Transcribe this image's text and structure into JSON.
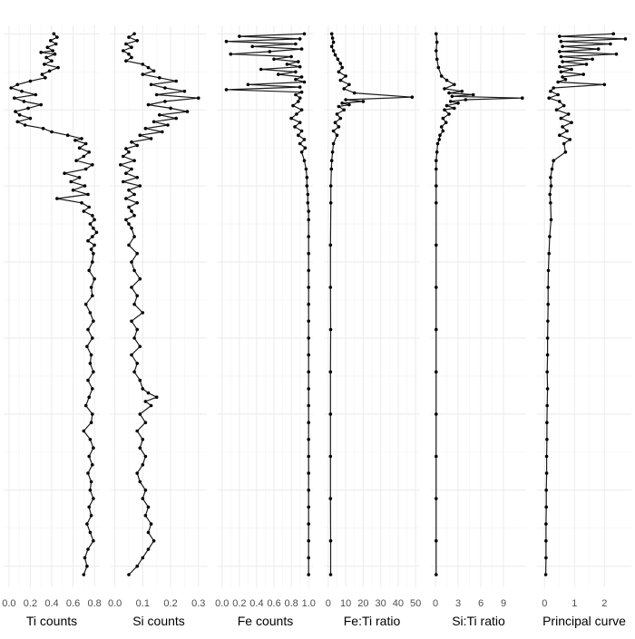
{
  "chart_data": [
    {
      "type": "line",
      "xlabel": "Ti counts",
      "xlim": [
        -0.05,
        0.85
      ],
      "xticks": [
        0.0,
        0.2,
        0.4,
        0.6,
        0.8
      ],
      "xtick_labels": [
        "0.0",
        "0.2",
        "0.4",
        "0.6",
        "0.8"
      ],
      "grid": true,
      "series": [
        {
          "depth": [
            0,
            4,
            8,
            12,
            16,
            20,
            22,
            24,
            28,
            32,
            36,
            40,
            44,
            48,
            52,
            56,
            60,
            64,
            68,
            72,
            76,
            80,
            84,
            88,
            92,
            96,
            100,
            104,
            108,
            112,
            116,
            120,
            124,
            126,
            130,
            135,
            140,
            145,
            150,
            155,
            160,
            165,
            170,
            175,
            180,
            185,
            190,
            195,
            200,
            205,
            210,
            215,
            220,
            225,
            230,
            235,
            240,
            245,
            250,
            255,
            260,
            270,
            280,
            290,
            300,
            310,
            320,
            330,
            340,
            350,
            360,
            370,
            380,
            390,
            400,
            410,
            420,
            430,
            440,
            450,
            460,
            470,
            480,
            490,
            500,
            510,
            520,
            530,
            540,
            550,
            560,
            570,
            580,
            590,
            600,
            610,
            620,
            630,
            640
          ],
          "values": [
            0.42,
            0.45,
            0.39,
            0.44,
            0.36,
            0.41,
            0.3,
            0.43,
            0.35,
            0.4,
            0.33,
            0.46,
            0.38,
            0.31,
            0.34,
            0.2,
            0.08,
            0.02,
            0.12,
            0.25,
            0.05,
            0.14,
            0.3,
            0.18,
            0.06,
            0.1,
            0.2,
            0.08,
            0.15,
            0.32,
            0.4,
            0.55,
            0.68,
            0.62,
            0.72,
            0.66,
            0.75,
            0.7,
            0.63,
            0.78,
            0.72,
            0.52,
            0.66,
            0.58,
            0.71,
            0.6,
            0.74,
            0.45,
            0.68,
            0.75,
            0.7,
            0.78,
            0.8,
            0.76,
            0.79,
            0.82,
            0.78,
            0.74,
            0.8,
            0.77,
            0.79,
            0.78,
            0.75,
            0.8,
            0.77,
            0.78,
            0.72,
            0.76,
            0.79,
            0.74,
            0.78,
            0.73,
            0.77,
            0.76,
            0.79,
            0.74,
            0.78,
            0.75,
            0.72,
            0.78,
            0.77,
            0.7,
            0.76,
            0.79,
            0.75,
            0.78,
            0.74,
            0.77,
            0.76,
            0.79,
            0.75,
            0.77,
            0.73,
            0.76,
            0.79,
            0.74,
            0.71,
            0.73,
            0.7
          ]
        }
      ]
    },
    {
      "type": "line",
      "xlabel": "Si counts",
      "xlim": [
        -0.015,
        0.33
      ],
      "xticks": [
        0.0,
        0.1,
        0.2,
        0.3
      ],
      "xtick_labels": [
        "0.0",
        "0.1",
        "0.2",
        "0.3"
      ],
      "grid": true,
      "series": [
        {
          "depth": [
            0,
            4,
            8,
            12,
            16,
            20,
            24,
            28,
            32,
            36,
            40,
            44,
            48,
            52,
            56,
            60,
            64,
            68,
            72,
            76,
            80,
            84,
            88,
            92,
            96,
            100,
            104,
            108,
            112,
            116,
            120,
            124,
            128,
            132,
            136,
            140,
            145,
            150,
            155,
            160,
            165,
            170,
            175,
            180,
            185,
            190,
            195,
            200,
            205,
            210,
            215,
            220,
            225,
            230,
            240,
            250,
            260,
            270,
            280,
            290,
            300,
            310,
            320,
            330,
            340,
            350,
            360,
            370,
            380,
            390,
            400,
            410,
            420,
            425,
            430,
            435,
            440,
            450,
            460,
            470,
            480,
            490,
            500,
            510,
            520,
            530,
            540,
            550,
            560,
            570,
            580,
            590,
            600,
            610,
            620,
            630,
            640
          ],
          "values": [
            0.07,
            0.05,
            0.08,
            0.04,
            0.06,
            0.03,
            0.05,
            0.06,
            0.04,
            0.1,
            0.12,
            0.14,
            0.1,
            0.16,
            0.22,
            0.13,
            0.18,
            0.25,
            0.15,
            0.3,
            0.18,
            0.12,
            0.2,
            0.26,
            0.16,
            0.22,
            0.14,
            0.19,
            0.11,
            0.17,
            0.09,
            0.13,
            0.06,
            0.08,
            0.04,
            0.05,
            0.03,
            0.07,
            0.02,
            0.06,
            0.04,
            0.08,
            0.03,
            0.09,
            0.05,
            0.07,
            0.04,
            0.08,
            0.05,
            0.06,
            0.07,
            0.04,
            0.05,
            0.06,
            0.07,
            0.05,
            0.08,
            0.06,
            0.07,
            0.09,
            0.06,
            0.08,
            0.07,
            0.1,
            0.06,
            0.08,
            0.07,
            0.09,
            0.06,
            0.08,
            0.07,
            0.09,
            0.1,
            0.12,
            0.15,
            0.11,
            0.13,
            0.09,
            0.11,
            0.08,
            0.1,
            0.09,
            0.11,
            0.1,
            0.08,
            0.09,
            0.11,
            0.1,
            0.12,
            0.11,
            0.13,
            0.12,
            0.14,
            0.12,
            0.1,
            0.08,
            0.05
          ]
        }
      ]
    },
    {
      "type": "line",
      "xlabel": "Fe counts",
      "xlim": [
        -0.05,
        1.05
      ],
      "xticks": [
        0.0,
        0.2,
        0.4,
        0.6,
        0.8,
        1.0
      ],
      "xtick_labels": [
        "0.0",
        "0.2",
        "0.4",
        "0.6",
        "0.8",
        "1.0"
      ],
      "grid": true,
      "series": [
        {
          "depth": [
            0,
            3,
            6,
            9,
            12,
            15,
            18,
            21,
            24,
            27,
            30,
            33,
            36,
            39,
            42,
            45,
            48,
            51,
            54,
            57,
            60,
            63,
            66,
            69,
            72,
            76,
            80,
            85,
            90,
            95,
            100,
            105,
            110,
            115,
            120,
            125,
            130,
            135,
            140,
            150,
            160,
            170,
            180,
            190,
            200,
            210,
            220,
            240,
            260,
            280,
            300,
            320,
            340,
            360,
            380,
            400,
            420,
            440,
            460,
            480,
            500,
            520,
            540,
            560,
            580,
            600,
            620,
            640
          ],
          "values": [
            0.95,
            0.2,
            0.9,
            0.05,
            0.85,
            0.35,
            0.92,
            0.55,
            0.1,
            0.8,
            0.6,
            0.88,
            0.75,
            0.9,
            0.45,
            0.85,
            0.65,
            0.92,
            0.85,
            0.95,
            0.3,
            0.9,
            0.05,
            0.92,
            0.85,
            0.9,
            0.88,
            0.82,
            0.92,
            0.86,
            0.8,
            0.9,
            0.84,
            0.92,
            0.88,
            0.95,
            0.9,
            0.96,
            0.92,
            0.95,
            0.97,
            0.98,
            0.98,
            0.99,
            0.99,
            1.0,
            1.0,
            1.0,
            1.0,
            1.0,
            1.0,
            1.0,
            1.0,
            1.0,
            1.0,
            1.0,
            1.0,
            1.0,
            1.0,
            1.0,
            1.0,
            1.0,
            1.0,
            1.0,
            1.0,
            1.0,
            1.0,
            1.0
          ]
        }
      ]
    },
    {
      "type": "line",
      "xlabel": "Fe:Ti ratio",
      "xlim": [
        -2.5,
        52.5
      ],
      "xticks": [
        0,
        10,
        20,
        30,
        40,
        50
      ],
      "xtick_labels": [
        "0",
        "10",
        "20",
        "30",
        "40",
        "50"
      ],
      "grid": true,
      "series": [
        {
          "depth": [
            0,
            5,
            10,
            15,
            20,
            25,
            30,
            35,
            40,
            45,
            50,
            55,
            60,
            65,
            70,
            75,
            78,
            80,
            82,
            84,
            86,
            90,
            95,
            100,
            105,
            110,
            115,
            120,
            130,
            140,
            150,
            160,
            180,
            200,
            250,
            300,
            350,
            400,
            450,
            500,
            550,
            600,
            640
          ],
          "values": [
            2.0,
            2.5,
            3.0,
            2.0,
            3.0,
            4.0,
            5.5,
            7.0,
            8.0,
            6.0,
            10.0,
            7.0,
            12.0,
            9.0,
            15.0,
            48.0,
            10.0,
            20.0,
            8.0,
            12.0,
            6.0,
            9.0,
            5.0,
            7.0,
            4.0,
            6.0,
            3.0,
            5.0,
            3.0,
            2.5,
            2.0,
            1.8,
            1.5,
            1.5,
            1.3,
            1.3,
            1.4,
            1.3,
            1.3,
            1.3,
            1.3,
            1.4,
            1.4
          ]
        }
      ]
    },
    {
      "type": "line",
      "xlabel": "Si:Ti ratio",
      "xlim": [
        -0.6,
        12.0
      ],
      "xticks": [
        0,
        3,
        6,
        9
      ],
      "xtick_labels": [
        "0",
        "3",
        "6",
        "9"
      ],
      "grid": true,
      "series": [
        {
          "depth": [
            0,
            10,
            20,
            30,
            40,
            50,
            55,
            60,
            65,
            68,
            70,
            72,
            74,
            76,
            78,
            80,
            82,
            85,
            88,
            90,
            95,
            100,
            105,
            110,
            115,
            120,
            125,
            130,
            140,
            150,
            160,
            180,
            200,
            250,
            300,
            350,
            400,
            450,
            500,
            550,
            600,
            640
          ],
          "values": [
            0.1,
            0.2,
            0.1,
            0.2,
            0.4,
            0.8,
            1.5,
            2.5,
            1.2,
            3.5,
            1.8,
            5.0,
            2.2,
            11.5,
            4.0,
            2.0,
            3.0,
            1.5,
            2.5,
            1.2,
            1.8,
            1.0,
            1.4,
            0.8,
            1.0,
            0.6,
            0.5,
            0.3,
            0.2,
            0.1,
            0.1,
            0.1,
            0.1,
            0.1,
            0.1,
            0.1,
            0.1,
            0.1,
            0.1,
            0.1,
            0.1,
            0.1
          ]
        }
      ]
    },
    {
      "type": "line",
      "xlabel": "Principal curve",
      "xlim": [
        -0.25,
        2.9
      ],
      "xticks": [
        0,
        1,
        2
      ],
      "xtick_labels": [
        "0",
        "1",
        "2"
      ],
      "grid": true,
      "series": [
        {
          "depth": [
            0,
            3,
            6,
            9,
            12,
            15,
            18,
            21,
            24,
            27,
            30,
            33,
            36,
            39,
            42,
            45,
            48,
            51,
            54,
            57,
            60,
            64,
            68,
            72,
            76,
            80,
            85,
            90,
            95,
            100,
            105,
            110,
            115,
            120,
            125,
            130,
            140,
            150,
            160,
            170,
            180,
            190,
            200,
            220,
            240,
            260,
            280,
            300,
            320,
            340,
            360,
            380,
            400,
            420,
            440,
            460,
            480,
            500,
            520,
            540,
            560,
            580,
            600,
            620,
            640
          ],
          "values": [
            2.3,
            0.5,
            2.7,
            0.55,
            2.2,
            0.6,
            1.8,
            0.5,
            2.4,
            0.55,
            1.6,
            0.6,
            1.4,
            0.5,
            0.9,
            0.55,
            1.3,
            0.6,
            0.7,
            0.45,
            2.0,
            0.3,
            0.2,
            0.45,
            0.15,
            0.5,
            0.65,
            0.4,
            0.8,
            0.55,
            0.9,
            0.6,
            0.75,
            0.5,
            0.85,
            0.65,
            0.7,
            0.3,
            0.25,
            0.2,
            0.22,
            0.18,
            0.2,
            0.22,
            0.17,
            0.15,
            0.13,
            0.12,
            0.12,
            0.11,
            0.1,
            0.1,
            0.09,
            0.1,
            0.09,
            0.08,
            0.08,
            0.07,
            0.07,
            0.06,
            0.06,
            0.05,
            0.05,
            0.05,
            0.04
          ]
        }
      ]
    }
  ]
}
